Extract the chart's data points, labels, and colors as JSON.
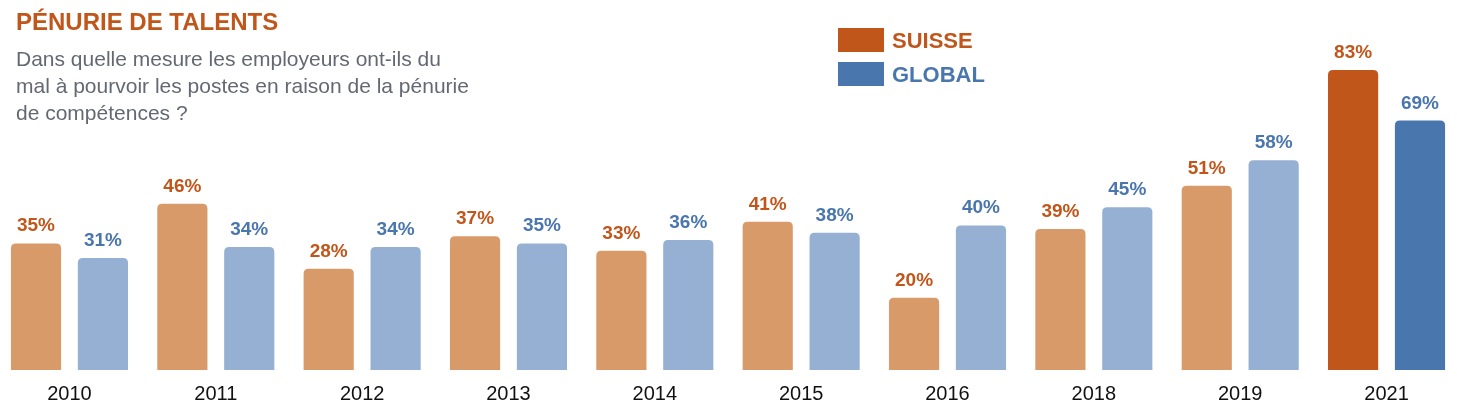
{
  "chart_data": {
    "type": "bar",
    "title": "PÉNURIE DE TALENTS",
    "subtitle": "Dans quelle mesure les employeurs ont-ils du\nmal à pourvoir les postes en raison de la pénurie\nde compétences ?",
    "categories": [
      "2010",
      "2011",
      "2012",
      "2013",
      "2014",
      "2015",
      "2016",
      "2018",
      "2019",
      "2021"
    ],
    "series": [
      {
        "name": "SUISSE",
        "color": "#c1561b",
        "colors": [
          "#d99a6a",
          "#d99a6a",
          "#d99a6a",
          "#d99a6a",
          "#d99a6a",
          "#d99a6a",
          "#d99a6a",
          "#d99a6a",
          "#d99a6a",
          "#c1561b"
        ],
        "values": [
          35,
          46,
          28,
          37,
          33,
          41,
          20,
          39,
          51,
          83
        ],
        "value_labels": [
          "35%",
          "46%",
          "28%",
          "37%",
          "33%",
          "41%",
          "20%",
          "39%",
          "51%",
          "83%"
        ]
      },
      {
        "name": "GLOBAL",
        "color": "#4a76ae",
        "colors": [
          "#95b0d3",
          "#95b0d3",
          "#95b0d3",
          "#95b0d3",
          "#95b0d3",
          "#95b0d3",
          "#95b0d3",
          "#95b0d3",
          "#95b0d3",
          "#4a76ae"
        ],
        "values": [
          31,
          34,
          34,
          35,
          36,
          38,
          40,
          45,
          58,
          69
        ],
        "value_labels": [
          "31%",
          "34%",
          "34%",
          "35%",
          "36%",
          "38%",
          "40%",
          "45%",
          "58%",
          "69%"
        ]
      }
    ],
    "legend": "top",
    "tick_labels": "x"
  }
}
